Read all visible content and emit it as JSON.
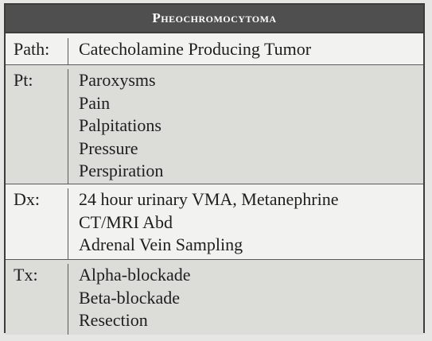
{
  "title": "Pheochromocytoma",
  "rows": [
    {
      "label": "Path:",
      "items": [
        "Catecholamine Producing Tumor"
      ]
    },
    {
      "label": "Pt:",
      "items": [
        "Paroxysms",
        "Pain",
        "Palpitations",
        "Pressure",
        "Perspiration"
      ]
    },
    {
      "label": "Dx:",
      "items": [
        "24 hour urinary VMA, Metanephrine",
        "CT/MRI Abd",
        "Adrenal Vein Sampling"
      ]
    },
    {
      "label": "Tx:",
      "items": [
        "Alpha-blockade",
        "Beta-blockade",
        "Resection"
      ]
    }
  ]
}
